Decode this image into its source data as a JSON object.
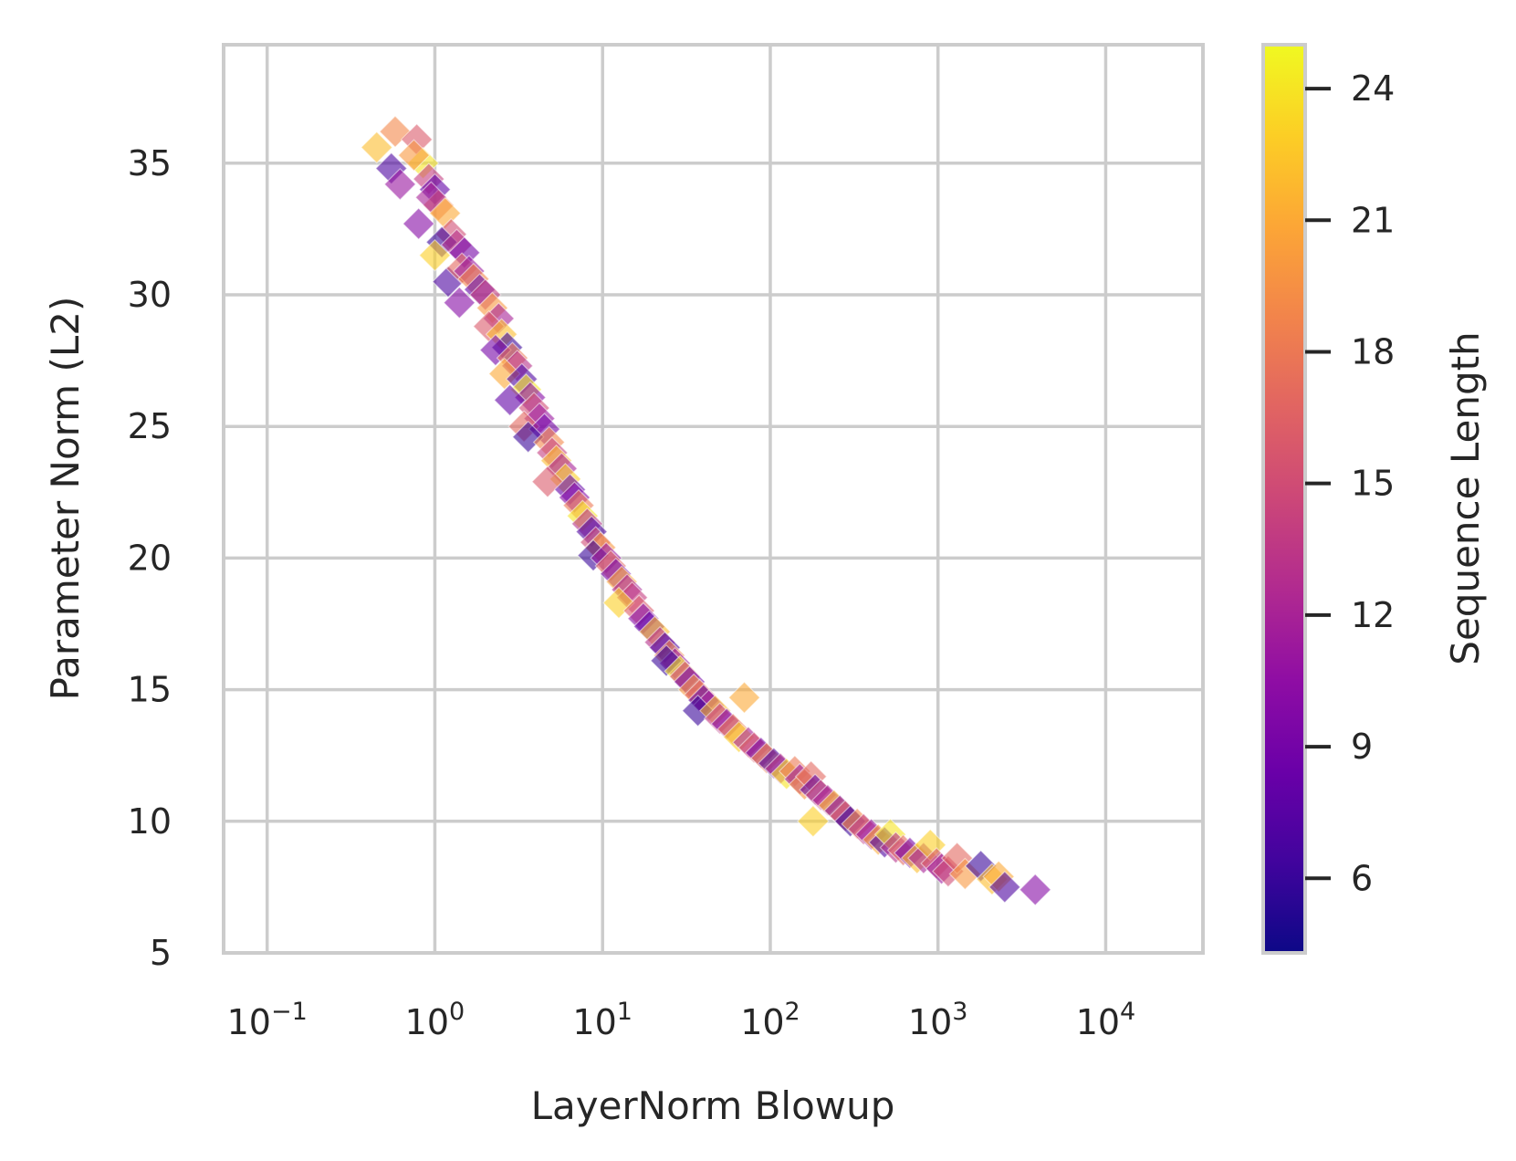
{
  "chart_data": {
    "type": "scatter",
    "title": "",
    "xlabel": "LayerNorm Blowup",
    "ylabel": "Parameter Norm (L2)",
    "x_scale": "log",
    "xlim": [
      0.055,
      38000
    ],
    "ylim": [
      5,
      39.5
    ],
    "x_ticks": [
      {
        "value": 0.1,
        "base": "10",
        "exp": "−1"
      },
      {
        "value": 1,
        "base": "10",
        "exp": "0"
      },
      {
        "value": 10,
        "base": "10",
        "exp": "1"
      },
      {
        "value": 100,
        "base": "10",
        "exp": "2"
      },
      {
        "value": 1000,
        "base": "10",
        "exp": "3"
      },
      {
        "value": 10000,
        "base": "10",
        "exp": "4"
      }
    ],
    "y_ticks": [
      5,
      10,
      15,
      20,
      25,
      30,
      35
    ],
    "grid": true,
    "marker": "diamond",
    "alpha": 0.6,
    "colorbar": {
      "label": "Sequence Length",
      "colormap": "plasma",
      "range": [
        4.3,
        25
      ],
      "ticks": [
        6,
        9,
        12,
        15,
        18,
        21,
        24
      ]
    },
    "colormap_stops": [
      "#0d0887",
      "#41049d",
      "#6a00a8",
      "#8f0da4",
      "#b12a90",
      "#cc4778",
      "#e16462",
      "#f2844b",
      "#fca636",
      "#fcce25",
      "#f0f921"
    ],
    "points": [
      [
        0.45,
        35.6,
        22
      ],
      [
        0.58,
        36.2,
        19
      ],
      [
        0.55,
        34.8,
        7
      ],
      [
        0.62,
        34.2,
        11
      ],
      [
        0.78,
        35.9,
        16
      ],
      [
        0.85,
        35.0,
        24
      ],
      [
        0.92,
        34.4,
        14
      ],
      [
        0.75,
        35.3,
        20
      ],
      [
        1.0,
        34.0,
        8
      ],
      [
        1.05,
        33.4,
        18
      ],
      [
        0.95,
        33.7,
        12
      ],
      [
        1.15,
        33.1,
        21
      ],
      [
        0.8,
        32.7,
        10
      ],
      [
        1.25,
        32.3,
        15
      ],
      [
        1.1,
        32.0,
        6
      ],
      [
        1.35,
        31.9,
        13
      ],
      [
        1.5,
        31.6,
        9
      ],
      [
        1.0,
        31.5,
        23
      ],
      [
        1.2,
        30.5,
        7
      ],
      [
        1.45,
        31.0,
        17
      ],
      [
        1.6,
        30.9,
        11
      ],
      [
        1.7,
        30.6,
        19
      ],
      [
        1.85,
        30.2,
        8
      ],
      [
        2.0,
        30.0,
        14
      ],
      [
        1.4,
        29.7,
        10
      ],
      [
        2.2,
        29.5,
        20
      ],
      [
        2.4,
        29.1,
        12
      ],
      [
        2.1,
        28.8,
        16
      ],
      [
        2.5,
        28.5,
        22
      ],
      [
        2.7,
        28.0,
        6
      ],
      [
        2.3,
        27.9,
        9
      ],
      [
        2.9,
        27.6,
        18
      ],
      [
        3.1,
        27.3,
        13
      ],
      [
        2.6,
        27.0,
        21
      ],
      [
        3.3,
        26.8,
        7
      ],
      [
        3.5,
        26.4,
        24
      ],
      [
        3.7,
        26.1,
        10
      ],
      [
        2.8,
        26.0,
        8
      ],
      [
        3.9,
        25.7,
        15
      ],
      [
        4.2,
        25.3,
        11
      ],
      [
        3.4,
        25.0,
        17
      ],
      [
        4.5,
        24.9,
        9
      ],
      [
        3.6,
        24.6,
        6
      ],
      [
        4.8,
        24.4,
        19
      ],
      [
        5.0,
        24.0,
        14
      ],
      [
        5.3,
        23.7,
        22
      ],
      [
        5.7,
        23.4,
        12
      ],
      [
        6.0,
        23.0,
        23
      ],
      [
        4.7,
        22.9,
        16
      ],
      [
        6.4,
        22.6,
        8
      ],
      [
        6.8,
        22.3,
        10
      ],
      [
        7.2,
        22.0,
        18
      ],
      [
        7.6,
        21.6,
        24
      ],
      [
        8.1,
        21.3,
        13
      ],
      [
        8.6,
        21.0,
        7
      ],
      [
        9.1,
        20.6,
        15
      ],
      [
        9.7,
        20.4,
        20
      ],
      [
        8.8,
        20.1,
        6
      ],
      [
        10.5,
        20.0,
        11
      ],
      [
        11.2,
        19.7,
        17
      ],
      [
        12.0,
        19.4,
        9
      ],
      [
        13.0,
        19.1,
        21
      ],
      [
        14.0,
        18.8,
        12
      ],
      [
        15.0,
        18.5,
        14
      ],
      [
        12.5,
        18.3,
        23
      ],
      [
        16.5,
        18.0,
        16
      ],
      [
        17.5,
        17.7,
        10
      ],
      [
        19.0,
        17.4,
        8
      ],
      [
        20.5,
        17.2,
        22
      ],
      [
        22.0,
        16.8,
        13
      ],
      [
        23.5,
        16.6,
        7
      ],
      [
        25.0,
        16.3,
        19
      ],
      [
        27.0,
        16.0,
        11
      ],
      [
        24.0,
        16.1,
        6
      ],
      [
        29.0,
        15.7,
        24
      ],
      [
        31.0,
        15.5,
        15
      ],
      [
        33.0,
        15.3,
        9
      ],
      [
        35.0,
        15.0,
        20
      ],
      [
        38.0,
        14.8,
        17
      ],
      [
        40.0,
        14.6,
        8
      ],
      [
        43.0,
        14.4,
        12
      ],
      [
        37.0,
        14.2,
        6
      ],
      [
        47.0,
        14.2,
        22
      ],
      [
        50.0,
        13.9,
        14
      ],
      [
        55.0,
        13.7,
        10
      ],
      [
        60.0,
        13.5,
        18
      ],
      [
        65.0,
        13.2,
        23
      ],
      [
        70.0,
        14.7,
        21
      ],
      [
        74.0,
        13.0,
        12
      ],
      [
        80.0,
        12.8,
        16
      ],
      [
        88.0,
        12.6,
        9
      ],
      [
        95.0,
        12.4,
        19
      ],
      [
        105.0,
        12.2,
        7
      ],
      [
        115.0,
        12.0,
        13
      ],
      [
        125.0,
        11.8,
        24
      ],
      [
        140.0,
        11.9,
        18
      ],
      [
        150.0,
        11.6,
        11
      ],
      [
        160.0,
        11.4,
        20
      ],
      [
        175.0,
        11.7,
        17
      ],
      [
        185.0,
        11.2,
        8
      ],
      [
        200.0,
        11.0,
        15
      ],
      [
        180.0,
        10.0,
        23
      ],
      [
        220.0,
        10.8,
        12
      ],
      [
        240.0,
        10.6,
        22
      ],
      [
        260.0,
        10.4,
        10
      ],
      [
        280.0,
        10.2,
        16
      ],
      [
        300.0,
        10.0,
        6
      ],
      [
        330.0,
        9.9,
        19
      ],
      [
        360.0,
        9.7,
        14
      ],
      [
        400.0,
        9.5,
        11
      ],
      [
        440.0,
        9.3,
        21
      ],
      [
        480.0,
        9.2,
        7
      ],
      [
        520.0,
        9.5,
        24
      ],
      [
        560.0,
        9.0,
        13
      ],
      [
        620.0,
        8.9,
        17
      ],
      [
        680.0,
        8.8,
        9
      ],
      [
        750.0,
        8.6,
        22
      ],
      [
        820.0,
        8.6,
        12
      ],
      [
        900.0,
        9.1,
        23
      ],
      [
        980.0,
        8.4,
        16
      ],
      [
        1050.0,
        8.2,
        11
      ],
      [
        1150.0,
        8.1,
        15
      ],
      [
        1300.0,
        8.6,
        17
      ],
      [
        1450.0,
        8.0,
        20
      ],
      [
        1800.0,
        8.3,
        6
      ],
      [
        2100.0,
        7.8,
        22
      ],
      [
        2300.0,
        7.9,
        21
      ],
      [
        2500.0,
        7.5,
        7
      ],
      [
        3800.0,
        7.4,
        10
      ]
    ]
  }
}
